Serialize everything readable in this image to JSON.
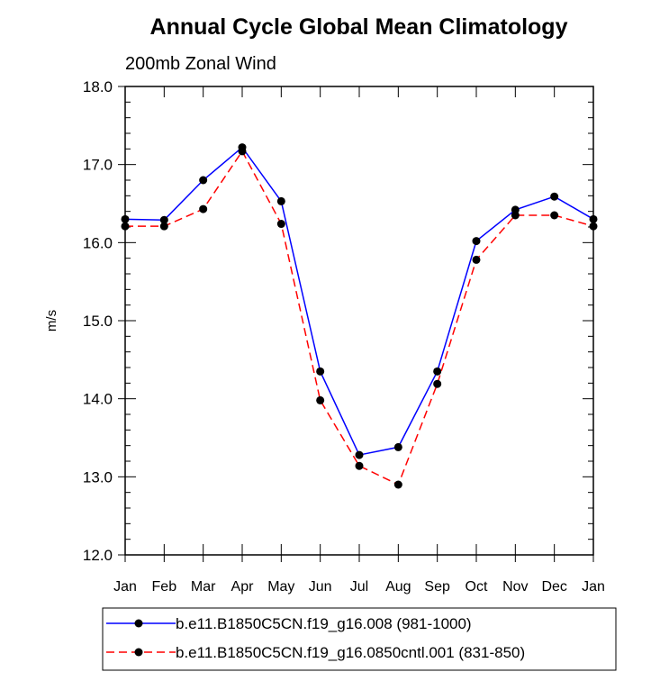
{
  "chart_data": {
    "type": "line",
    "title": "Annual Cycle Global Mean Climatology",
    "subtitle": "200mb Zonal Wind",
    "xlabel": "",
    "ylabel": "m/s",
    "categories": [
      "Jan",
      "Feb",
      "Mar",
      "Apr",
      "May",
      "Jun",
      "Jul",
      "Aug",
      "Sep",
      "Oct",
      "Nov",
      "Dec",
      "Jan"
    ],
    "ylim": [
      12.0,
      18.0
    ],
    "yticks": [
      "12.0",
      "13.0",
      "14.0",
      "15.0",
      "16.0",
      "17.0",
      "18.0"
    ],
    "grid": false,
    "legend_position": "bottom",
    "series": [
      {
        "name": "b.e11.B1850C5CN.f19_g16.008 (981-1000)",
        "color": "#0000ff",
        "dash": "solid",
        "values": [
          16.3,
          16.29,
          16.8,
          17.22,
          16.53,
          14.35,
          13.28,
          13.38,
          14.35,
          16.02,
          16.42,
          16.59,
          16.3
        ]
      },
      {
        "name": "b.e11.B1850C5CN.f19_g16.0850cntl.001 (831-850)",
        "color": "#ff0000",
        "dash": "dashed",
        "values": [
          16.21,
          16.21,
          16.43,
          17.17,
          16.24,
          13.98,
          13.14,
          12.9,
          14.19,
          15.78,
          16.35,
          16.35,
          16.21
        ]
      }
    ]
  }
}
